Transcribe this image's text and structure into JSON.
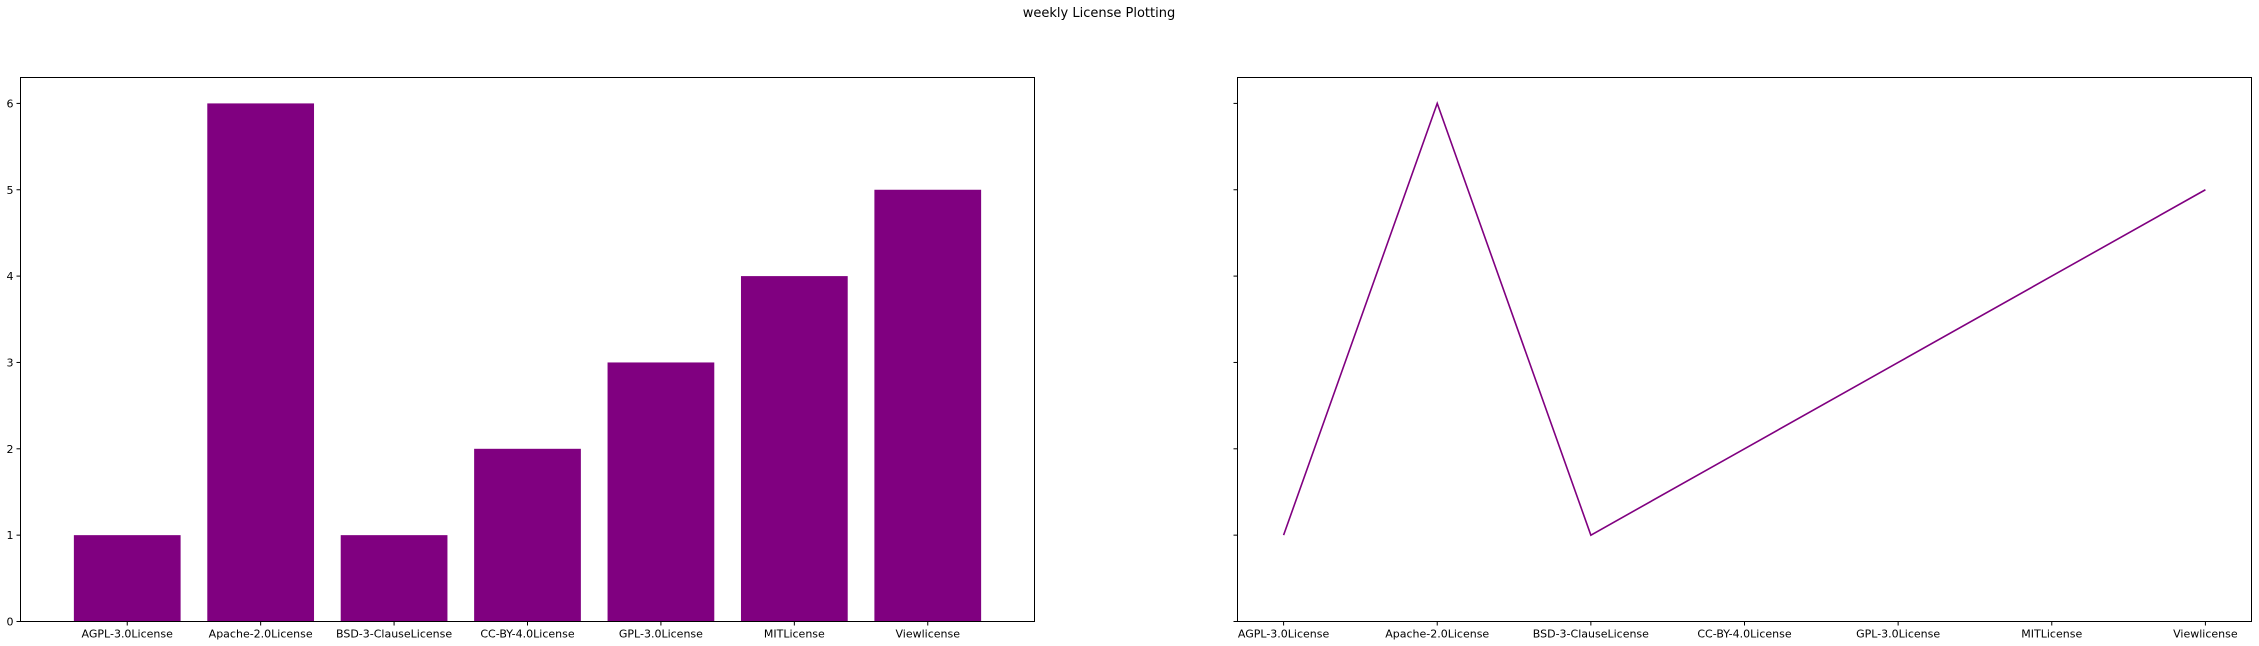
{
  "figure": {
    "title": "weekly License Plotting"
  },
  "chart_data": [
    {
      "type": "bar",
      "categories": [
        "AGPL-3.0License",
        "Apache-2.0License",
        "BSD-3-ClauseLicense",
        "CC-BY-4.0License",
        "GPL-3.0License",
        "MITLicense",
        "Viewlicense"
      ],
      "values": [
        1,
        6,
        1,
        2,
        3,
        4,
        5
      ],
      "color": "#800080",
      "ylim": [
        0,
        6.3
      ],
      "yticks": [
        0,
        1,
        2,
        3,
        4,
        5,
        6
      ],
      "grid": false
    },
    {
      "type": "line",
      "categories": [
        "AGPL-3.0License",
        "Apache-2.0License",
        "BSD-3-ClauseLicense",
        "CC-BY-4.0License",
        "GPL-3.0License",
        "MITLicense",
        "Viewlicense"
      ],
      "values": [
        1,
        6,
        1,
        2,
        3,
        4,
        5
      ],
      "color": "#800080",
      "ylim": [
        0,
        6.3
      ],
      "yticks": [
        0,
        1,
        2,
        3,
        4,
        5,
        6
      ],
      "shared_y": true,
      "grid": false
    }
  ]
}
